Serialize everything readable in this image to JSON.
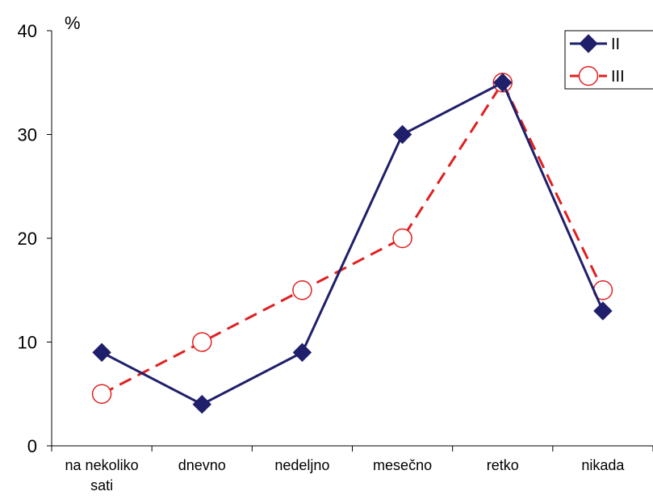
{
  "chart_data": {
    "type": "line",
    "categories": [
      "na nekoliko sati",
      "dnevno",
      "nedeljno",
      "mesečno",
      "retko",
      "nikada"
    ],
    "category_lines": [
      [
        "na nekoliko",
        "sati"
      ],
      [
        "dnevno"
      ],
      [
        "nedeljno"
      ],
      [
        "mesečno"
      ],
      [
        "retko"
      ],
      [
        "nikada"
      ]
    ],
    "series": [
      {
        "name": "II",
        "values": [
          9,
          4,
          9,
          30,
          35,
          13
        ],
        "color": "#1f1f6b",
        "marker": "diamond",
        "line": "solid"
      },
      {
        "name": "III",
        "values": [
          5,
          10,
          15,
          20,
          35,
          15
        ],
        "color": "#e02020",
        "marker": "open-circle",
        "line": "dashed"
      }
    ],
    "ylabel": "%",
    "ylim": [
      0,
      40
    ],
    "yticks": [
      0,
      10,
      20,
      30,
      40
    ],
    "grid": false,
    "legend_position": "top-right"
  }
}
